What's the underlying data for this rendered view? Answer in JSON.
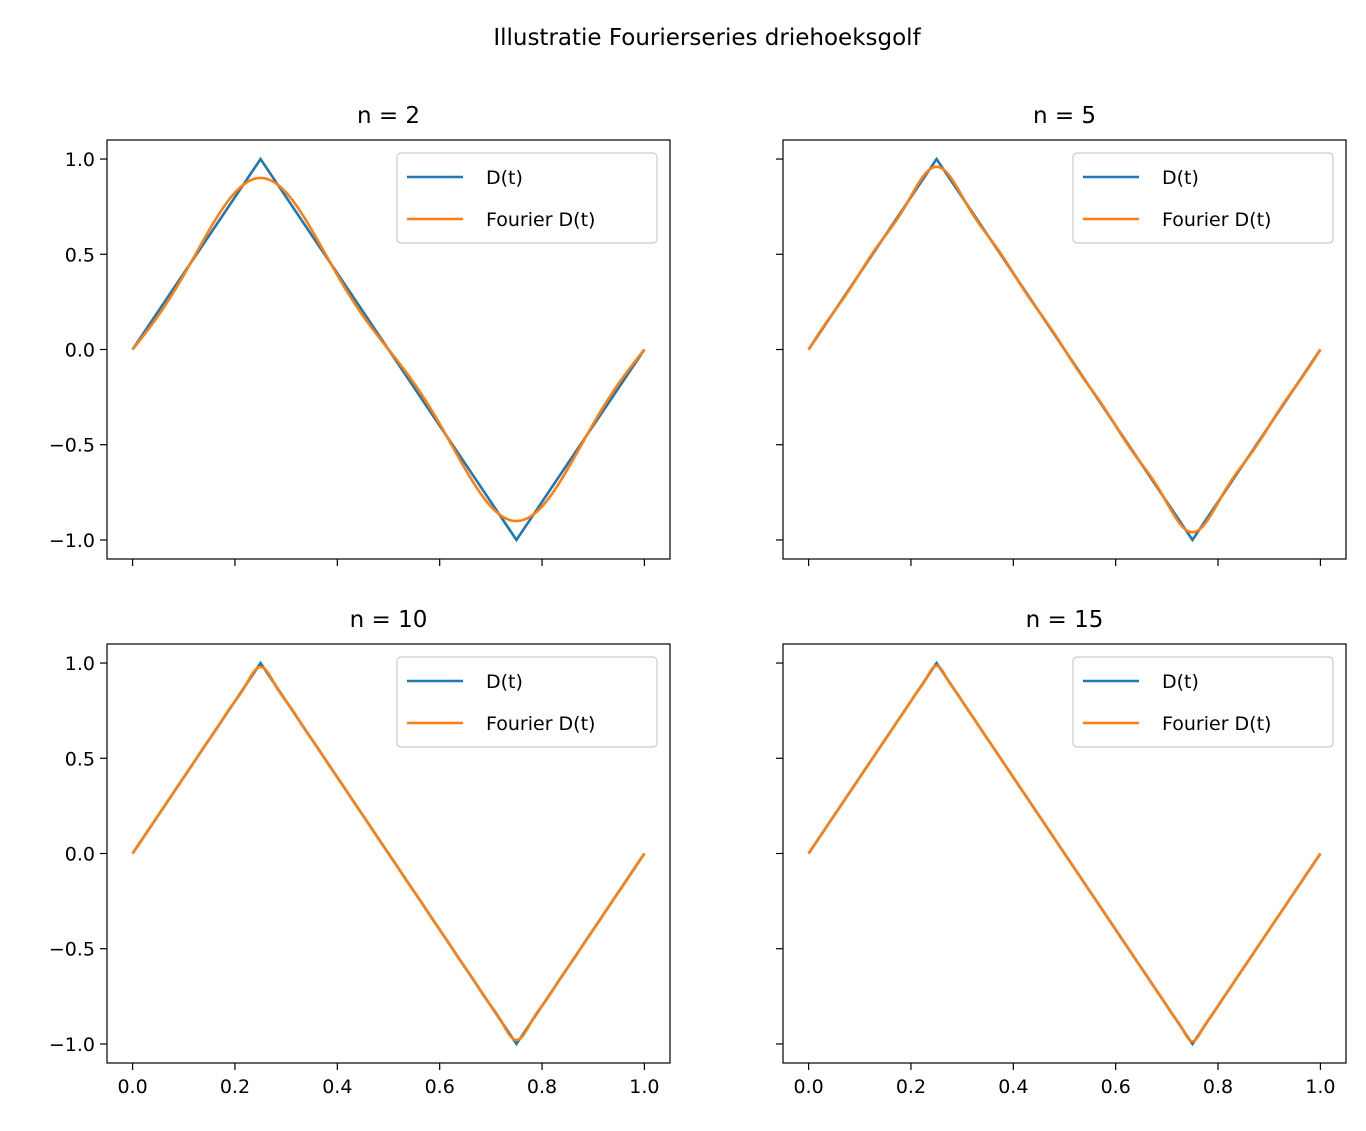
{
  "figure": {
    "title": "Illustratie Fourierseries driehoeksgolf",
    "colors": {
      "true_series": "#1f77b4",
      "fourier_series": "#ff7f0e"
    }
  },
  "chart_data": [
    {
      "type": "line",
      "title": "n = 2",
      "n_terms": 2,
      "xlim": [
        -0.05,
        1.05
      ],
      "ylim": [
        -1.1,
        1.1
      ],
      "x_ticks": [
        "0.0",
        "0.2",
        "0.4",
        "0.6",
        "0.8",
        "1.0"
      ],
      "y_ticks": [
        "1.0",
        "0.5",
        "0.0",
        "−0.5",
        "−1.0"
      ],
      "show_x_tick_labels": false,
      "show_y_tick_labels": true,
      "legend": {
        "placement": "upper right",
        "entries": [
          "D(t)",
          "Fourier D(t)"
        ]
      },
      "series": [
        {
          "name": "D(t)",
          "x": [
            0,
            0.25,
            0.75,
            1.0
          ],
          "y": [
            0,
            1,
            -1,
            0
          ]
        },
        {
          "name": "Fourier D(t)",
          "x": [
            0,
            0.25,
            0.5,
            0.75,
            1.0
          ],
          "y": [
            0,
            0.81,
            0,
            -0.81,
            0
          ]
        }
      ]
    },
    {
      "type": "line",
      "title": "n = 5",
      "n_terms": 5,
      "xlim": [
        -0.05,
        1.05
      ],
      "ylim": [
        -1.1,
        1.1
      ],
      "x_ticks": [
        "0.0",
        "0.2",
        "0.4",
        "0.6",
        "0.8",
        "1.0"
      ],
      "y_ticks": [
        "1.0",
        "0.5",
        "0.0",
        "−0.5",
        "−1.0"
      ],
      "show_x_tick_labels": false,
      "show_y_tick_labels": false,
      "legend": {
        "placement": "upper right",
        "entries": [
          "D(t)",
          "Fourier D(t)"
        ]
      },
      "series": [
        {
          "name": "D(t)",
          "x": [
            0,
            0.25,
            0.75,
            1.0
          ],
          "y": [
            0,
            1,
            -1,
            0
          ]
        },
        {
          "name": "Fourier D(t)",
          "x": [
            0,
            0.25,
            0.5,
            0.75,
            1.0
          ],
          "y": [
            0,
            0.9,
            0,
            -0.9,
            0
          ]
        }
      ]
    },
    {
      "type": "line",
      "title": "n = 10",
      "n_terms": 10,
      "xlim": [
        -0.05,
        1.05
      ],
      "ylim": [
        -1.1,
        1.1
      ],
      "x_ticks": [
        "0.0",
        "0.2",
        "0.4",
        "0.6",
        "0.8",
        "1.0"
      ],
      "y_ticks": [
        "1.0",
        "0.5",
        "0.0",
        "−0.5",
        "−1.0"
      ],
      "show_x_tick_labels": true,
      "show_y_tick_labels": true,
      "legend": {
        "placement": "upper right",
        "entries": [
          "D(t)",
          "Fourier D(t)"
        ]
      },
      "series": [
        {
          "name": "D(t)",
          "x": [
            0,
            0.25,
            0.75,
            1.0
          ],
          "y": [
            0,
            1,
            -1,
            0
          ]
        },
        {
          "name": "Fourier D(t)",
          "x": [
            0,
            0.25,
            0.5,
            0.75,
            1.0
          ],
          "y": [
            0,
            0.96,
            0,
            -0.96,
            0
          ]
        }
      ]
    },
    {
      "type": "line",
      "title": "n = 15",
      "n_terms": 15,
      "xlim": [
        -0.05,
        1.05
      ],
      "ylim": [
        -1.1,
        1.1
      ],
      "x_ticks": [
        "0.0",
        "0.2",
        "0.4",
        "0.6",
        "0.8",
        "1.0"
      ],
      "y_ticks": [
        "1.0",
        "0.5",
        "0.0",
        "−0.5",
        "−1.0"
      ],
      "show_x_tick_labels": true,
      "show_y_tick_labels": false,
      "legend": {
        "placement": "upper right",
        "entries": [
          "D(t)",
          "Fourier D(t)"
        ]
      },
      "series": [
        {
          "name": "D(t)",
          "x": [
            0,
            0.25,
            0.75,
            1.0
          ],
          "y": [
            0,
            1,
            -1,
            0
          ]
        },
        {
          "name": "Fourier D(t)",
          "x": [
            0,
            0.25,
            0.5,
            0.75,
            1.0
          ],
          "y": [
            0,
            0.97,
            0,
            -0.97,
            0
          ]
        }
      ]
    }
  ]
}
